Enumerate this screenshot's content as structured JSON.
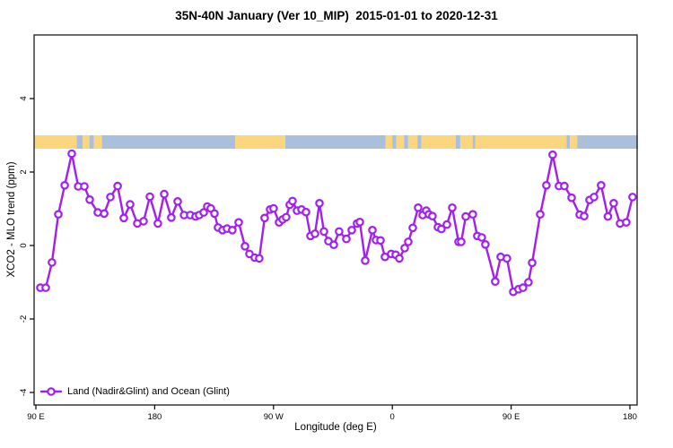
{
  "page": {
    "background": "#ffffff"
  },
  "chart_data": {
    "type": "line",
    "title": "35N-40N January (Ver 10_MIP)  2015-01-01 to 2020-12-31",
    "xlabel": "Longitude (deg E)",
    "ylabel": "XCO2 - MLO trend (ppm)",
    "grid": false,
    "frame": "box",
    "ylim": [
      -4.3,
      5.7
    ],
    "x_axis": {
      "note": "longitude increasing eastward from 90E, wrapping across dateline and Greenwich",
      "ticks": [
        {
          "t": 90,
          "label": "90 E"
        },
        {
          "t": 180,
          "label": "180"
        },
        {
          "t": 270,
          "label": "90 W"
        },
        {
          "t": 360,
          "label": "0"
        },
        {
          "t": 450,
          "label": "90 E"
        },
        {
          "t": 540,
          "label": "180"
        }
      ]
    },
    "y_axis": {
      "ticks": [
        {
          "v": 4,
          "label": "4"
        },
        {
          "v": 2,
          "label": "2"
        },
        {
          "v": 0,
          "label": "0"
        },
        {
          "v": -2,
          "label": "-2"
        },
        {
          "v": -4,
          "label": "-4"
        }
      ]
    },
    "legend": {
      "label": "Land (Nadir&Glint) and Ocean (Glint)",
      "position": "bottom-left"
    },
    "series": [
      {
        "name": "Land (Nadir&Glint) and Ocean (Glint)",
        "color": "#A020F0",
        "marker": "open-circle",
        "points": [
          [
            93.4,
            -1.15
          ],
          [
            97.5,
            -1.15
          ],
          [
            102.2,
            -0.46
          ],
          [
            107.0,
            0.85
          ],
          [
            111.8,
            1.64
          ],
          [
            117.2,
            2.5
          ],
          [
            122.0,
            1.61
          ],
          [
            126.7,
            1.61
          ],
          [
            130.8,
            1.25
          ],
          [
            136.9,
            0.9
          ],
          [
            141.7,
            0.87
          ],
          [
            146.4,
            1.32
          ],
          [
            151.9,
            1.62
          ],
          [
            156.6,
            0.75
          ],
          [
            161.4,
            1.12
          ],
          [
            166.8,
            0.6
          ],
          [
            171.6,
            0.66
          ],
          [
            176.3,
            1.33
          ],
          [
            182.4,
            0.6
          ],
          [
            187.2,
            1.4
          ],
          [
            192.6,
            0.76
          ],
          [
            197.4,
            1.2
          ],
          [
            202.2,
            0.83
          ],
          [
            206.9,
            0.83
          ],
          [
            211.0,
            0.79
          ],
          [
            213.7,
            0.83
          ],
          [
            217.1,
            0.9
          ],
          [
            219.8,
            1.06
          ],
          [
            222.5,
            1.01
          ],
          [
            225.3,
            0.87
          ],
          [
            228.0,
            0.49
          ],
          [
            231.4,
            0.42
          ],
          [
            234.8,
            0.46
          ],
          [
            238.8,
            0.42
          ],
          [
            243.6,
            0.63
          ],
          [
            248.4,
            -0.02
          ],
          [
            251.8,
            -0.23
          ],
          [
            255.8,
            -0.33
          ],
          [
            259.2,
            -0.35
          ],
          [
            263.3,
            0.75
          ],
          [
            267.4,
            0.98
          ],
          [
            270.1,
            1.01
          ],
          [
            274.2,
            0.63
          ],
          [
            276.9,
            0.71
          ],
          [
            279.6,
            0.77
          ],
          [
            282.3,
            1.11
          ],
          [
            284.4,
            1.21
          ],
          [
            287.8,
            0.95
          ],
          [
            291.2,
            0.98
          ],
          [
            294.6,
            0.91
          ],
          [
            298.0,
            0.26
          ],
          [
            301.4,
            0.32
          ],
          [
            304.8,
            1.15
          ],
          [
            308.2,
            0.38
          ],
          [
            311.6,
            0.12
          ],
          [
            315.7,
            0.02
          ],
          [
            319.7,
            0.38
          ],
          [
            325.2,
            0.18
          ],
          [
            329.3,
            0.42
          ],
          [
            333.3,
            0.6
          ],
          [
            335.4,
            0.64
          ],
          [
            339.5,
            -0.41
          ],
          [
            344.9,
            0.42
          ],
          [
            347.6,
            0.15
          ],
          [
            351.0,
            0.14
          ],
          [
            354.4,
            -0.31
          ],
          [
            359.2,
            -0.23
          ],
          [
            362.6,
            -0.25
          ],
          [
            365.3,
            -0.35
          ],
          [
            369.4,
            -0.07
          ],
          [
            372.1,
            0.1
          ],
          [
            375.5,
            0.48
          ],
          [
            379.6,
            1.03
          ],
          [
            383.0,
            0.83
          ],
          [
            385.7,
            0.95
          ],
          [
            387.7,
            0.85
          ],
          [
            390.4,
            0.8
          ],
          [
            394.5,
            0.5
          ],
          [
            397.2,
            0.45
          ],
          [
            401.3,
            0.57
          ],
          [
            405.4,
            1.03
          ],
          [
            410.2,
            0.1
          ],
          [
            412.2,
            0.1
          ],
          [
            415.6,
            0.79
          ],
          [
            421.0,
            0.85
          ],
          [
            424.4,
            0.26
          ],
          [
            427.8,
            0.22
          ],
          [
            430.5,
            0.03
          ],
          [
            438.0,
            -0.98
          ],
          [
            442.1,
            -0.31
          ],
          [
            446.8,
            -0.35
          ],
          [
            451.6,
            -1.26
          ],
          [
            455.6,
            -1.19
          ],
          [
            459.0,
            -1.15
          ],
          [
            463.1,
            -1.0
          ],
          [
            465.9,
            -0.47
          ],
          [
            472.0,
            0.85
          ],
          [
            476.7,
            1.64
          ],
          [
            481.5,
            2.47
          ],
          [
            486.2,
            1.62
          ],
          [
            490.3,
            1.62
          ],
          [
            495.8,
            1.3
          ],
          [
            501.9,
            0.84
          ],
          [
            505.3,
            0.8
          ],
          [
            509.4,
            1.24
          ],
          [
            512.8,
            1.32
          ],
          [
            518.2,
            1.64
          ],
          [
            523.3,
            0.79
          ],
          [
            527.7,
            1.15
          ],
          [
            532.5,
            0.6
          ],
          [
            537.2,
            0.63
          ],
          [
            542.0,
            1.32
          ]
        ]
      }
    ],
    "surface_band": {
      "y_center_ppm": 2.82,
      "colors": {
        "land": "#FBD67F",
        "ocean": "#A9BFDB"
      },
      "segments": [
        {
          "from": 89,
          "to": 121,
          "surface": "land"
        },
        {
          "from": 121,
          "to": 125.5,
          "surface": "ocean"
        },
        {
          "from": 125.5,
          "to": 130.5,
          "surface": "land"
        },
        {
          "from": 130.5,
          "to": 134,
          "surface": "ocean"
        },
        {
          "from": 134,
          "to": 140,
          "surface": "land"
        },
        {
          "from": 140,
          "to": 241,
          "surface": "ocean"
        },
        {
          "from": 241,
          "to": 279,
          "surface": "land"
        },
        {
          "from": 279,
          "to": 355,
          "surface": "ocean"
        },
        {
          "from": 355,
          "to": 360,
          "surface": "land"
        },
        {
          "from": 360,
          "to": 363,
          "surface": "ocean"
        },
        {
          "from": 363,
          "to": 369,
          "surface": "land"
        },
        {
          "from": 369,
          "to": 372,
          "surface": "ocean"
        },
        {
          "from": 372,
          "to": 379,
          "surface": "land"
        },
        {
          "from": 379,
          "to": 382,
          "surface": "ocean"
        },
        {
          "from": 382,
          "to": 408,
          "surface": "land"
        },
        {
          "from": 408,
          "to": 411.5,
          "surface": "ocean"
        },
        {
          "from": 411.5,
          "to": 421,
          "surface": "land"
        },
        {
          "from": 421,
          "to": 423,
          "surface": "ocean"
        },
        {
          "from": 423,
          "to": 492,
          "surface": "land"
        },
        {
          "from": 492,
          "to": 494.5,
          "surface": "ocean"
        },
        {
          "from": 494.5,
          "to": 500,
          "surface": "land"
        },
        {
          "from": 500,
          "to": 546,
          "surface": "ocean"
        }
      ]
    }
  }
}
